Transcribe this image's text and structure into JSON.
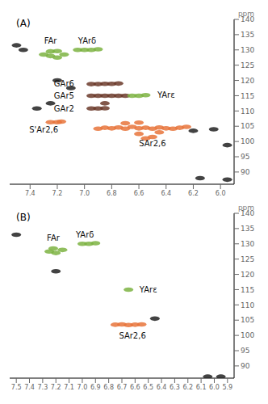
{
  "chart_data": [
    {
      "type": "scatter",
      "title": "(A)",
      "marker": "ellipse",
      "grid": false,
      "xlim": [
        7.55,
        5.9
      ],
      "ylim": [
        140,
        86
      ],
      "xticks": [
        7.4,
        7.2,
        {
          "value": 7,
          "label": "7.0"
        },
        6.8,
        6.6,
        6.4,
        6.2,
        {
          "value": 6,
          "label": "6.0"
        }
      ],
      "yticks": [
        90,
        95,
        100,
        105,
        110,
        115,
        120,
        125,
        130,
        135,
        140
      ],
      "y_label": "ppm",
      "series": [
        {
          "color": "#e8743b",
          "points": [
            [
              7.25,
              106.3
            ],
            [
              7.2,
              106.3
            ],
            [
              7.17,
              106.5
            ],
            [
              6.9,
              104.2
            ],
            [
              6.85,
              104.5
            ],
            [
              6.8,
              104.3
            ],
            [
              6.75,
              104.6
            ],
            [
              6.7,
              104.2
            ],
            [
              6.65,
              104.8
            ],
            [
              6.6,
              104.3
            ],
            [
              6.55,
              104.5
            ],
            [
              6.5,
              104.2
            ],
            [
              6.45,
              104.6
            ],
            [
              6.4,
              104.3
            ],
            [
              6.35,
              104.2
            ],
            [
              6.3,
              104.5
            ],
            [
              6.25,
              104.8
            ],
            [
              6.55,
              101
            ],
            [
              6.5,
              101.5
            ],
            [
              6.6,
              102.5
            ],
            [
              6.7,
              106
            ],
            [
              6.6,
              106.2
            ],
            [
              6.45,
              103
            ]
          ]
        },
        {
          "color": "#6b3a2a",
          "points": [
            [
              6.95,
              110.8
            ],
            [
              6.9,
              110.8
            ],
            [
              6.85,
              110.9
            ],
            [
              6.95,
              115
            ],
            [
              6.9,
              115
            ],
            [
              6.85,
              115
            ],
            [
              6.8,
              115
            ],
            [
              6.75,
              115
            ],
            [
              6.7,
              115
            ],
            [
              6.95,
              118.8
            ],
            [
              6.9,
              118.8
            ],
            [
              6.85,
              118.9
            ],
            [
              6.8,
              118.9
            ],
            [
              6.75,
              119
            ],
            [
              6.85,
              112.5
            ]
          ]
        },
        {
          "color": "#7cb342",
          "points": [
            [
              6.65,
              115
            ],
            [
              6.6,
              115
            ],
            [
              6.55,
              115.2
            ],
            [
              7.3,
              128.5
            ],
            [
              7.25,
              128
            ],
            [
              7.2,
              127.5
            ],
            [
              7.15,
              128.5
            ],
            [
              7.25,
              129.5
            ],
            [
              7.2,
              129.6
            ],
            [
              7.05,
              130
            ],
            [
              7.0,
              130
            ],
            [
              6.95,
              130
            ],
            [
              6.9,
              130.2
            ]
          ]
        },
        {
          "color": "#222222",
          "points": [
            [
              7.35,
              110.8
            ],
            [
              7.25,
              112.5
            ],
            [
              7.2,
              120
            ],
            [
              7.1,
              117.5
            ],
            [
              7.45,
              130
            ],
            [
              6.2,
              103.5
            ],
            [
              6.05,
              104
            ],
            [
              5.95,
              98.8
            ],
            [
              5.95,
              87.5
            ],
            [
              6.15,
              88
            ],
            [
              7.5,
              131.5
            ]
          ]
        }
      ],
      "annotations": [
        {
          "text": "S'Ar2,6",
          "x": 7.3,
          "y": 104
        },
        {
          "text": "SAr2,6",
          "x": 6.5,
          "y": 99.5
        },
        {
          "text": "GAr2",
          "x": 7.15,
          "y": 110.8
        },
        {
          "text": "GAr5",
          "x": 7.15,
          "y": 115
        },
        {
          "text": "GAr6",
          "x": 7.15,
          "y": 119
        },
        {
          "text": "YArε",
          "x": 6.4,
          "y": 115.2
        },
        {
          "text": "FAr",
          "x": 7.25,
          "y": 133
        },
        {
          "text": "YArδ",
          "x": 6.98,
          "y": 133
        }
      ]
    },
    {
      "type": "scatter",
      "title": "(B)",
      "marker": "ellipse",
      "grid": false,
      "xlim": [
        7.55,
        5.85
      ],
      "ylim": [
        140,
        86
      ],
      "xticks": [
        7.5,
        7.4,
        7.3,
        7.2,
        7.1,
        {
          "value": 7,
          "label": "7.0"
        },
        6.9,
        6.8,
        6.7,
        6.6,
        6.5,
        6.4,
        6.3,
        6.2,
        6.1,
        {
          "value": 6,
          "label": "6.0"
        },
        5.9
      ],
      "yticks": [
        90,
        95,
        100,
        105,
        110,
        115,
        120,
        125,
        130,
        135,
        140
      ],
      "y_label": "ppm",
      "series": [
        {
          "color": "#e8743b",
          "points": [
            [
              6.75,
              103.5
            ],
            [
              6.7,
              103.6
            ],
            [
              6.65,
              103.4
            ],
            [
              6.6,
              103.5
            ],
            [
              6.55,
              103.6
            ]
          ]
        },
        {
          "color": "#7cb342",
          "points": [
            [
              6.65,
              115
            ],
            [
              7.25,
              127.5
            ],
            [
              7.2,
              127
            ],
            [
              7.15,
              128
            ],
            [
              7.22,
              128.5
            ],
            [
              7.0,
              130
            ],
            [
              6.95,
              130
            ],
            [
              6.9,
              130.2
            ]
          ]
        },
        {
          "color": "#222222",
          "points": [
            [
              7.2,
              121
            ],
            [
              6.45,
              105.5
            ],
            [
              7.5,
              133
            ],
            [
              6.05,
              86.5
            ],
            [
              5.95,
              86.5
            ]
          ]
        }
      ],
      "annotations": [
        {
          "text": "SAr2,6",
          "x": 6.62,
          "y": 100
        },
        {
          "text": "YArε",
          "x": 6.5,
          "y": 115
        },
        {
          "text": "FAr",
          "x": 7.22,
          "y": 132
        },
        {
          "text": "YArδ",
          "x": 6.98,
          "y": 133
        }
      ]
    }
  ]
}
